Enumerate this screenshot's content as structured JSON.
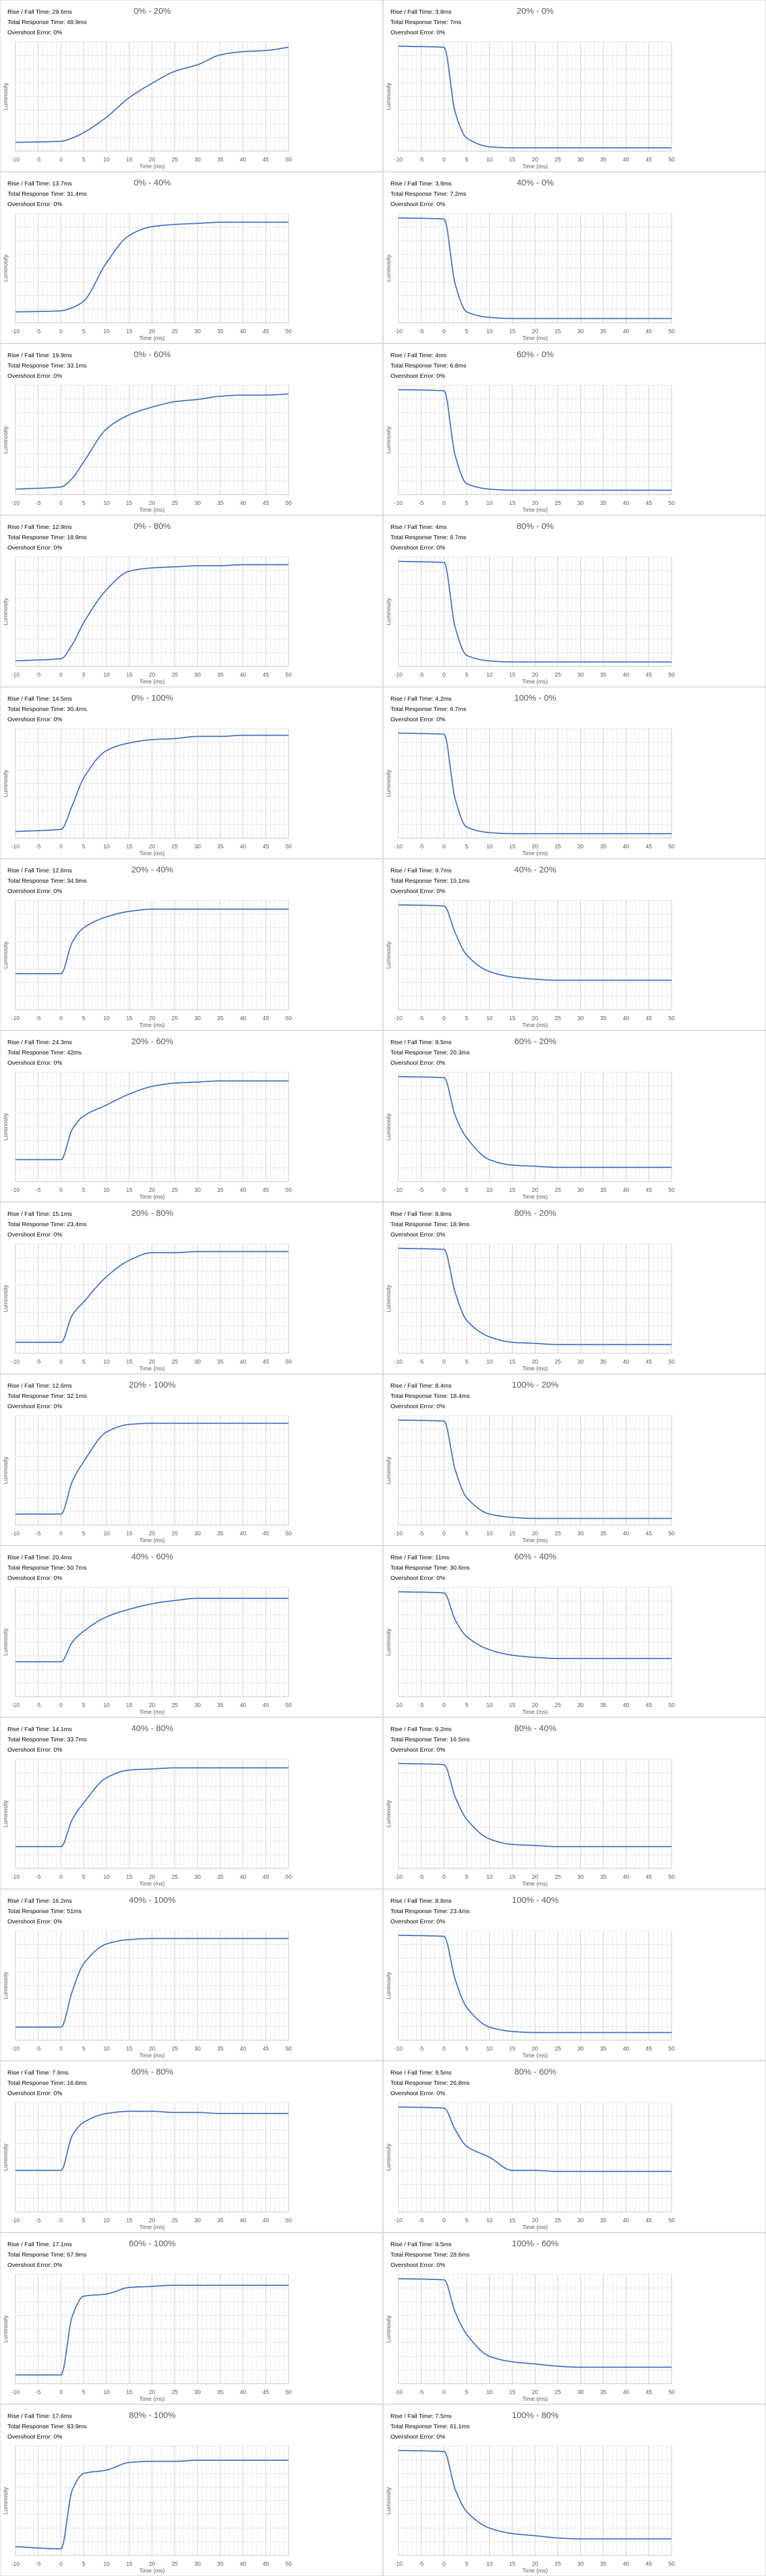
{
  "chart_data": {
    "type": "line",
    "layout": "grid of 30 small-multiple line charts, 2 columns x 15 rows",
    "xlabel": "Time (ms)",
    "ylabel": "Luminosity",
    "xlim": [
      -10,
      50
    ],
    "x_ticks": [
      "-10",
      "-5",
      "0",
      "5",
      "10",
      "15",
      "20",
      "25",
      "30",
      "35",
      "40",
      "45",
      "50"
    ],
    "y_unit": "relative luminosity fraction (no tick labels shown)",
    "series_color": "#4472c4",
    "x": [
      -10,
      0,
      2.5,
      5,
      10,
      15,
      20,
      25,
      30,
      35,
      40,
      45,
      50
    ],
    "charts": [
      {
        "title": "0% - 20%",
        "rise_fall": "Rise / Fall Time: 29.6ms",
        "total": "Total Response Time: 48.9ms",
        "overshoot": "Overshoot Error: 0%",
        "y": [
          0.08,
          0.09,
          0.12,
          0.17,
          0.31,
          0.49,
          0.62,
          0.73,
          0.79,
          0.88,
          0.91,
          0.92,
          0.95
        ]
      },
      {
        "title": "20% - 0%",
        "rise_fall": "Rise / Fall Time: 3.8ms",
        "total": "Total Response Time: 7ms",
        "overshoot": "Overshoot Error: 0%",
        "y": [
          0.96,
          0.95,
          0.35,
          0.12,
          0.04,
          0.03,
          0.03,
          0.03,
          0.03,
          0.03,
          0.03,
          0.03,
          0.03
        ]
      },
      {
        "title": "0% - 40%",
        "rise_fall": "Rise / Fall Time: 13.7ms",
        "total": "Total Response Time: 31.4ms",
        "overshoot": "Overshoot Error: 0%",
        "y": [
          0.1,
          0.11,
          0.14,
          0.2,
          0.55,
          0.8,
          0.88,
          0.9,
          0.91,
          0.92,
          0.92,
          0.92,
          0.92
        ]
      },
      {
        "title": "40% - 0%",
        "rise_fall": "Rise / Fall Time: 3.9ms",
        "total": "Total Response Time: 7.2ms",
        "overshoot": "Overshoot Error: 0%",
        "y": [
          0.96,
          0.95,
          0.35,
          0.1,
          0.05,
          0.04,
          0.04,
          0.04,
          0.04,
          0.04,
          0.04,
          0.04,
          0.04
        ]
      },
      {
        "title": "0% - 60%",
        "rise_fall": "Rise / Fall Time: 19.9ms",
        "total": "Total Response Time: 33.1ms",
        "overshoot": "Overshoot Error: 0%",
        "y": [
          0.05,
          0.07,
          0.15,
          0.3,
          0.6,
          0.73,
          0.8,
          0.85,
          0.87,
          0.9,
          0.91,
          0.91,
          0.92
        ]
      },
      {
        "title": "60% - 0%",
        "rise_fall": "Rise / Fall Time: 4ms",
        "total": "Total Response Time: 6.8ms",
        "overshoot": "Overshoot Error: 0%",
        "y": [
          0.96,
          0.95,
          0.35,
          0.1,
          0.05,
          0.04,
          0.04,
          0.04,
          0.04,
          0.04,
          0.04,
          0.04,
          0.04
        ]
      },
      {
        "title": "0% - 80%",
        "rise_fall": "Rise / Fall Time: 12.9ms",
        "total": "Total Response Time: 18.9ms",
        "overshoot": "Overshoot Error: 0%",
        "y": [
          0.05,
          0.07,
          0.2,
          0.4,
          0.7,
          0.87,
          0.9,
          0.91,
          0.92,
          0.92,
          0.93,
          0.93,
          0.93
        ]
      },
      {
        "title": "80% - 0%",
        "rise_fall": "Rise / Fall Time: 4ms",
        "total": "Total Response Time: 6.7ms",
        "overshoot": "Overshoot Error: 0%",
        "y": [
          0.96,
          0.95,
          0.35,
          0.1,
          0.05,
          0.04,
          0.04,
          0.04,
          0.04,
          0.04,
          0.04,
          0.04,
          0.04
        ]
      },
      {
        "title": "0% - 100%",
        "rise_fall": "Rise / Fall Time: 14.5ms",
        "total": "Total Response Time: 30.4ms",
        "overshoot": "Overshoot Error: 0%",
        "y": [
          0.06,
          0.08,
          0.3,
          0.55,
          0.8,
          0.87,
          0.9,
          0.91,
          0.93,
          0.93,
          0.94,
          0.94,
          0.94
        ]
      },
      {
        "title": "100% - 0%",
        "rise_fall": "Rise / Fall Time: 4.2ms",
        "total": "Total Response Time: 6.7ms",
        "overshoot": "Overshoot Error: 0%",
        "y": [
          0.96,
          0.95,
          0.35,
          0.1,
          0.05,
          0.04,
          0.04,
          0.04,
          0.04,
          0.04,
          0.04,
          0.04,
          0.04
        ]
      },
      {
        "title": "20% - 40%",
        "rise_fall": "Rise / Fall Time: 12.6ms",
        "total": "Total Response Time: 34.9ms",
        "overshoot": "Overshoot Error: 0%",
        "y": [
          0.33,
          0.33,
          0.62,
          0.75,
          0.85,
          0.9,
          0.92,
          0.92,
          0.92,
          0.92,
          0.92,
          0.92,
          0.92
        ]
      },
      {
        "title": "40% - 20%",
        "rise_fall": "Rise / Fall Time: 9.7ms",
        "total": "Total Response Time: 15.1ms",
        "overshoot": "Overshoot Error: 0%",
        "y": [
          0.96,
          0.95,
          0.7,
          0.5,
          0.35,
          0.3,
          0.28,
          0.27,
          0.27,
          0.27,
          0.27,
          0.27,
          0.27
        ]
      },
      {
        "title": "20% - 60%",
        "rise_fall": "Rise / Fall Time: 24.3ms",
        "total": "Total Response Time: 42ms",
        "overshoot": "Overshoot Error: 0%",
        "y": [
          0.2,
          0.2,
          0.48,
          0.6,
          0.7,
          0.8,
          0.87,
          0.9,
          0.91,
          0.92,
          0.92,
          0.92,
          0.92
        ]
      },
      {
        "title": "60% - 20%",
        "rise_fall": "Rise / Fall Time: 9.5ms",
        "total": "Total Response Time: 20.3ms",
        "overshoot": "Overshoot Error: 0%",
        "y": [
          0.96,
          0.95,
          0.6,
          0.4,
          0.2,
          0.15,
          0.14,
          0.13,
          0.13,
          0.13,
          0.13,
          0.13,
          0.13
        ]
      },
      {
        "title": "20% - 80%",
        "rise_fall": "Rise / Fall Time: 15.1ms",
        "total": "Total Response Time: 23.4ms",
        "overshoot": "Overshoot Error: 0%",
        "y": [
          0.1,
          0.1,
          0.35,
          0.47,
          0.7,
          0.85,
          0.92,
          0.92,
          0.93,
          0.93,
          0.93,
          0.93,
          0.93
        ]
      },
      {
        "title": "80% - 20%",
        "rise_fall": "Rise / Fall Time: 8.8ms",
        "total": "Total Response Time: 18.9ms",
        "overshoot": "Overshoot Error: 0%",
        "y": [
          0.96,
          0.95,
          0.55,
          0.3,
          0.15,
          0.1,
          0.09,
          0.08,
          0.08,
          0.08,
          0.08,
          0.08,
          0.08
        ]
      },
      {
        "title": "20% - 100%",
        "rise_fall": "Rise / Fall Time: 12.6ms",
        "total": "Total Response Time: 32.1ms",
        "overshoot": "Overshoot Error: 0%",
        "y": [
          0.1,
          0.1,
          0.4,
          0.58,
          0.85,
          0.92,
          0.93,
          0.93,
          0.93,
          0.93,
          0.93,
          0.93,
          0.93
        ]
      },
      {
        "title": "100% - 20%",
        "rise_fall": "Rise / Fall Time: 8.4ms",
        "total": "Total Response Time: 18.4ms",
        "overshoot": "Overshoot Error: 0%",
        "y": [
          0.96,
          0.95,
          0.5,
          0.25,
          0.1,
          0.07,
          0.06,
          0.06,
          0.06,
          0.06,
          0.06,
          0.06,
          0.06
        ]
      },
      {
        "title": "40% - 60%",
        "rise_fall": "Rise / Fall Time: 20.4ms",
        "total": "Total Response Time: 50.7ms",
        "overshoot": "Overshoot Error: 0%",
        "y": [
          0.32,
          0.32,
          0.5,
          0.6,
          0.73,
          0.8,
          0.85,
          0.88,
          0.9,
          0.9,
          0.9,
          0.9,
          0.9
        ]
      },
      {
        "title": "60% - 40%",
        "rise_fall": "Rise / Fall Time: 11ms",
        "total": "Total Response Time: 30.6ms",
        "overshoot": "Overshoot Error: 0%",
        "y": [
          0.96,
          0.95,
          0.7,
          0.55,
          0.43,
          0.38,
          0.36,
          0.35,
          0.35,
          0.35,
          0.35,
          0.35,
          0.35
        ]
      },
      {
        "title": "40% - 80%",
        "rise_fall": "Rise / Fall Time: 14.1ms",
        "total": "Total Response Time: 33.7ms",
        "overshoot": "Overshoot Error: 0%",
        "y": [
          0.2,
          0.2,
          0.45,
          0.6,
          0.83,
          0.9,
          0.91,
          0.92,
          0.92,
          0.92,
          0.92,
          0.92,
          0.92
        ]
      },
      {
        "title": "80% - 40%",
        "rise_fall": "Rise / Fall Time: 9.2ms",
        "total": "Total Response Time: 16.5ms",
        "overshoot": "Overshoot Error: 0%",
        "y": [
          0.96,
          0.95,
          0.65,
          0.45,
          0.27,
          0.22,
          0.21,
          0.2,
          0.2,
          0.2,
          0.2,
          0.2,
          0.2
        ]
      },
      {
        "title": "40% - 100%",
        "rise_fall": "Rise / Fall Time: 16.2ms",
        "total": "Total Response Time: 51ms",
        "overshoot": "Overshoot Error: 0%",
        "y": [
          0.12,
          0.12,
          0.45,
          0.7,
          0.88,
          0.92,
          0.93,
          0.93,
          0.93,
          0.93,
          0.93,
          0.93,
          0.93
        ]
      },
      {
        "title": "100% - 40%",
        "rise_fall": "Rise / Fall Time: 8.8ms",
        "total": "Total Response Time: 23.4ms",
        "overshoot": "Overshoot Error: 0%",
        "y": [
          0.96,
          0.95,
          0.55,
          0.3,
          0.12,
          0.08,
          0.07,
          0.07,
          0.07,
          0.07,
          0.07,
          0.07,
          0.07
        ]
      },
      {
        "title": "60% - 80%",
        "rise_fall": "Rise / Fall Time: 7.6ms",
        "total": "Total Response Time: 16.6ms",
        "overshoot": "Overshoot Error: 0%",
        "y": [
          0.38,
          0.38,
          0.7,
          0.82,
          0.9,
          0.92,
          0.92,
          0.91,
          0.91,
          0.9,
          0.9,
          0.9,
          0.9
        ]
      },
      {
        "title": "80% - 60%",
        "rise_fall": "Rise / Fall Time: 9.5ms",
        "total": "Total Response Time: 26.8ms",
        "overshoot": "Overshoot Error: 0%",
        "y": [
          0.96,
          0.95,
          0.75,
          0.6,
          0.5,
          0.38,
          0.38,
          0.37,
          0.37,
          0.37,
          0.37,
          0.37,
          0.37
        ]
      },
      {
        "title": "60% - 100%",
        "rise_fall": "Rise / Fall Time: 17.1ms",
        "total": "Total Response Time: 67.9ms",
        "overshoot": "Overshoot Error: 0%",
        "y": [
          0.08,
          0.08,
          0.62,
          0.8,
          0.82,
          0.88,
          0.89,
          0.9,
          0.9,
          0.9,
          0.9,
          0.9,
          0.9
        ]
      },
      {
        "title": "100% - 60%",
        "rise_fall": "Rise / Fall Time: 9.5ms",
        "total": "Total Response Time: 28.6ms",
        "overshoot": "Overshoot Error: 0%",
        "y": [
          0.96,
          0.95,
          0.65,
          0.45,
          0.25,
          0.2,
          0.18,
          0.16,
          0.15,
          0.15,
          0.15,
          0.15,
          0.15
        ]
      },
      {
        "title": "80% - 100%",
        "rise_fall": "Rise / Fall Time: 17.6ms",
        "total": "Total Response Time: 83.9ms",
        "overshoot": "Overshoot Error: 0%",
        "y": [
          0.08,
          0.06,
          0.6,
          0.75,
          0.78,
          0.85,
          0.86,
          0.86,
          0.87,
          0.87,
          0.87,
          0.87,
          0.87
        ]
      },
      {
        "title": "100% - 80%",
        "rise_fall": "Rise / Fall Time: 7.5ms",
        "total": "Total Response Time: 61.1ms",
        "overshoot": "Overshoot Error: 0%",
        "y": [
          0.96,
          0.95,
          0.6,
          0.4,
          0.25,
          0.2,
          0.18,
          0.16,
          0.15,
          0.15,
          0.15,
          0.15,
          0.15
        ]
      }
    ]
  }
}
